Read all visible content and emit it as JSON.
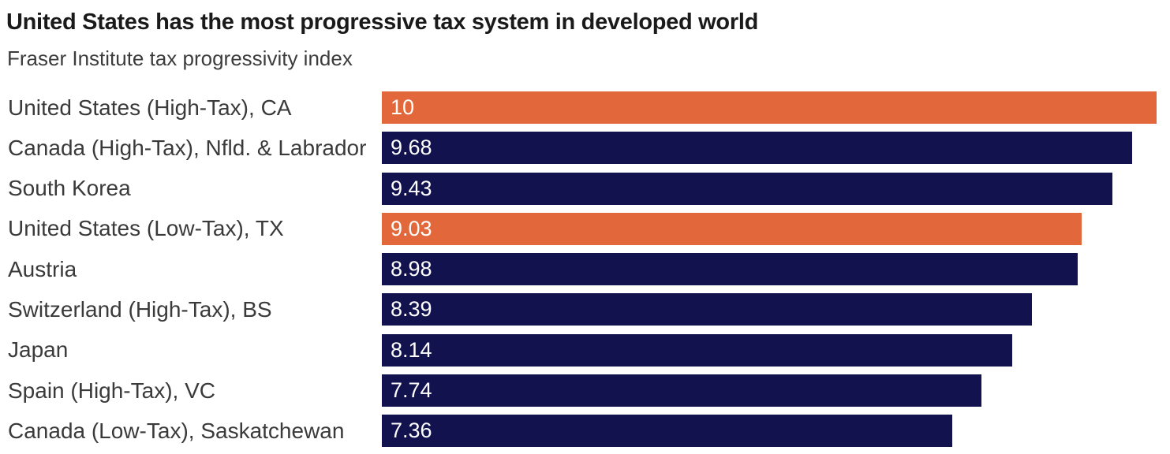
{
  "header": {
    "title": "United States has the most progressive tax system in developed world",
    "subtitle": "Fraser Institute tax progressivity index"
  },
  "chart_data": {
    "type": "bar",
    "orientation": "horizontal",
    "title": "United States has the most progressive tax system in developed world",
    "subtitle": "Fraser Institute tax progressivity index",
    "xlabel": "",
    "ylabel": "",
    "xlim": [
      0,
      10
    ],
    "grid": false,
    "legend": "none",
    "value_label_position": "inside-left",
    "colors": {
      "bar_default": "#12124E",
      "bar_highlight": "#E2683C",
      "value_text": "#ffffff",
      "label_text": "#3a3a3a",
      "title_text": "#1a1a1a"
    },
    "categories": [
      "United States (High-Tax), CA",
      "Canada (High-Tax), Nfld. & Labrador",
      "South Korea",
      "United States (Low-Tax), TX",
      "Austria",
      "Switzerland (High-Tax), BS",
      "Japan",
      "Spain (High-Tax), VC",
      "Canada (Low-Tax), Saskatchewan"
    ],
    "values": [
      10,
      9.68,
      9.43,
      9.03,
      8.98,
      8.39,
      8.14,
      7.74,
      7.36
    ],
    "rows": [
      {
        "label": "United States (High-Tax), CA",
        "value": 10,
        "display": "10",
        "highlight": true
      },
      {
        "label": "Canada (High-Tax), Nfld. & Labrador",
        "value": 9.68,
        "display": "9.68",
        "highlight": false
      },
      {
        "label": "South Korea",
        "value": 9.43,
        "display": "9.43",
        "highlight": false
      },
      {
        "label": "United States (Low-Tax), TX",
        "value": 9.03,
        "display": "9.03",
        "highlight": true
      },
      {
        "label": "Austria",
        "value": 8.98,
        "display": "8.98",
        "highlight": false
      },
      {
        "label": "Switzerland (High-Tax), BS",
        "value": 8.39,
        "display": "8.39",
        "highlight": false
      },
      {
        "label": "Japan",
        "value": 8.14,
        "display": "8.14",
        "highlight": false
      },
      {
        "label": "Spain (High-Tax), VC",
        "value": 7.74,
        "display": "7.74",
        "highlight": false
      },
      {
        "label": "Canada (Low-Tax), Saskatchewan",
        "value": 7.36,
        "display": "7.36",
        "highlight": false
      }
    ]
  }
}
